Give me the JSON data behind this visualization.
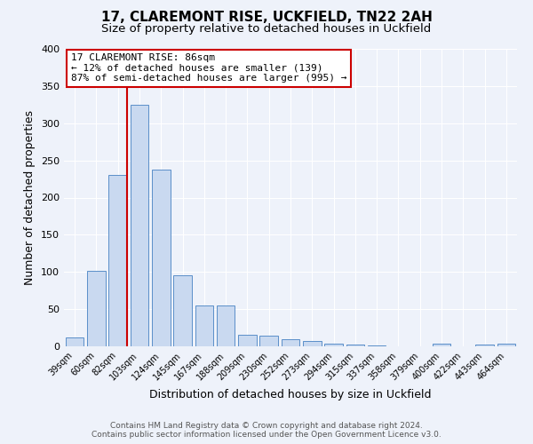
{
  "title": "17, CLAREMONT RISE, UCKFIELD, TN22 2AH",
  "subtitle": "Size of property relative to detached houses in Uckfield",
  "xlabel": "Distribution of detached houses by size in Uckfield",
  "ylabel": "Number of detached properties",
  "bin_labels": [
    "39sqm",
    "60sqm",
    "82sqm",
    "103sqm",
    "124sqm",
    "145sqm",
    "167sqm",
    "188sqm",
    "209sqm",
    "230sqm",
    "252sqm",
    "273sqm",
    "294sqm",
    "315sqm",
    "337sqm",
    "358sqm",
    "379sqm",
    "400sqm",
    "422sqm",
    "443sqm",
    "464sqm"
  ],
  "bar_heights": [
    12,
    102,
    230,
    325,
    238,
    96,
    55,
    55,
    16,
    14,
    10,
    7,
    4,
    2,
    1,
    0,
    0,
    3,
    0,
    2,
    3
  ],
  "bar_color": "#c9d9f0",
  "bar_edge_color": "#5b8fc9",
  "vline_x_index": 2,
  "vline_color": "#cc0000",
  "ylim": [
    0,
    400
  ],
  "yticks": [
    0,
    50,
    100,
    150,
    200,
    250,
    300,
    350,
    400
  ],
  "annotation_title": "17 CLAREMONT RISE: 86sqm",
  "annotation_line1": "← 12% of detached houses are smaller (139)",
  "annotation_line2": "87% of semi-detached houses are larger (995) →",
  "annotation_box_color": "#ffffff",
  "annotation_box_edge": "#cc0000",
  "footer_line1": "Contains HM Land Registry data © Crown copyright and database right 2024.",
  "footer_line2": "Contains public sector information licensed under the Open Government Licence v3.0.",
  "bg_color": "#eef2fa",
  "grid_color": "#ffffff",
  "title_fontsize": 11,
  "subtitle_fontsize": 9.5
}
